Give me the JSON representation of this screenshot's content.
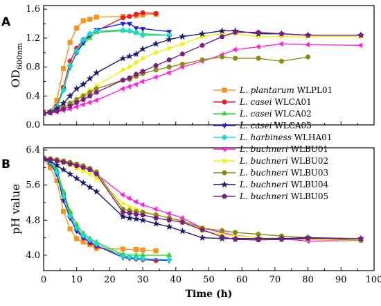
{
  "chart_data": {
    "type": "line",
    "xlabel": "Time (h)",
    "x_ticks": [
      0,
      10,
      20,
      30,
      40,
      50,
      60,
      70,
      80,
      90,
      100
    ],
    "xlim": [
      0,
      100
    ],
    "legend_placement": "right-middle",
    "panels": [
      {
        "label": "A",
        "ylabel_main": "OD",
        "ylabel_sub": "600nm",
        "ylim": [
          0,
          1.65
        ],
        "y_ticks": [
          "0.0",
          "0.4",
          "0.8",
          "1.2",
          "1.6"
        ],
        "y_tick_values": [
          0,
          0.4,
          0.8,
          1.2,
          1.6
        ],
        "series": [
          {
            "name": "WLPL01",
            "species": "L. plantarum",
            "strain": "WLPL01",
            "color": "#f7941d",
            "marker": "square",
            "x": [
              0,
              2,
              4,
              6,
              8,
              10,
              12,
              14,
              16,
              24,
              28,
              30,
              34
            ],
            "y": [
              0.16,
              0.18,
              0.34,
              0.78,
              1.14,
              1.34,
              1.44,
              1.46,
              1.49,
              1.5,
              1.51,
              1.52,
              1.53
            ]
          },
          {
            "name": "WLCA01",
            "species": "L. casei",
            "strain": "WLCA01",
            "color": "#ed1c24",
            "marker": "circle",
            "x": [
              0,
              2,
              4,
              6,
              8,
              10,
              12,
              14,
              16,
              24,
              26,
              28,
              30,
              34
            ],
            "y": [
              0.16,
              0.18,
              0.26,
              0.52,
              0.88,
              1.06,
              1.18,
              1.25,
              1.3,
              1.48,
              1.5,
              1.53,
              1.55,
              1.54
            ]
          },
          {
            "name": "WLCA02",
            "species": "L. casei",
            "strain": "WLCA02",
            "color": "#22dd22",
            "marker": "triangle-up",
            "x": [
              0,
              2,
              4,
              6,
              8,
              10,
              12,
              14,
              16,
              24,
              28,
              30,
              38
            ],
            "y": [
              0.16,
              0.18,
              0.25,
              0.5,
              0.82,
              1.0,
              1.12,
              1.2,
              1.28,
              1.3,
              1.27,
              1.26,
              1.24
            ]
          },
          {
            "name": "WLCA03",
            "species": "L. casei",
            "strain": "WLCA03",
            "color": "#1f1fe0",
            "marker": "triangle-down",
            "x": [
              0,
              2,
              4,
              6,
              8,
              10,
              12,
              14,
              16,
              24,
              26,
              28,
              30,
              38
            ],
            "y": [
              0.16,
              0.18,
              0.24,
              0.48,
              0.8,
              1.0,
              1.14,
              1.24,
              1.32,
              1.4,
              1.4,
              1.34,
              1.33,
              1.29
            ]
          },
          {
            "name": "WLHA01",
            "species": "L. harbiness",
            "strain": "WLHA01",
            "color": "#1fd6d0",
            "marker": "diamond",
            "x": [
              0,
              2,
              4,
              6,
              8,
              10,
              12,
              14,
              16,
              24,
              26,
              28,
              30,
              38
            ],
            "y": [
              0.16,
              0.18,
              0.24,
              0.48,
              0.82,
              1.02,
              1.18,
              1.26,
              1.3,
              1.31,
              1.3,
              1.28,
              1.24,
              1.24
            ]
          },
          {
            "name": "WLBU01",
            "species": "L. buchneri",
            "strain": "WLBU01",
            "color": "#ff22dd",
            "marker": "triangle-left",
            "x": [
              0,
              2,
              4,
              6,
              8,
              10,
              12,
              14,
              16,
              24,
              26,
              28,
              30,
              34,
              38,
              42,
              48,
              54,
              58,
              65,
              72,
              80,
              96
            ],
            "y": [
              0.16,
              0.16,
              0.18,
              0.2,
              0.22,
              0.25,
              0.28,
              0.31,
              0.34,
              0.5,
              0.53,
              0.56,
              0.6,
              0.66,
              0.72,
              0.8,
              0.88,
              0.97,
              1.04,
              1.08,
              1.12,
              1.11,
              1.1
            ]
          },
          {
            "name": "WLBU02",
            "species": "L. buchneri",
            "strain": "WLBU02",
            "color": "#f2f200",
            "marker": "triangle-right",
            "x": [
              0,
              2,
              4,
              6,
              8,
              10,
              12,
              14,
              16,
              24,
              26,
              28,
              30,
              34,
              38,
              42,
              48,
              54,
              58,
              65,
              72,
              80,
              96
            ],
            "y": [
              0.16,
              0.17,
              0.2,
              0.24,
              0.3,
              0.36,
              0.42,
              0.48,
              0.54,
              0.76,
              0.8,
              0.86,
              0.92,
              1.0,
              1.06,
              1.12,
              1.22,
              1.26,
              1.26,
              1.22,
              1.22,
              1.22,
              1.22
            ]
          },
          {
            "name": "WLBU03",
            "species": "L. buchneri",
            "strain": "WLBU03",
            "color": "#8c8c14",
            "marker": "circle",
            "x": [
              0,
              2,
              4,
              6,
              8,
              10,
              12,
              14,
              16,
              24,
              26,
              28,
              30,
              34,
              38,
              42,
              48,
              54,
              58,
              65,
              72,
              80
            ],
            "y": [
              0.16,
              0.17,
              0.2,
              0.24,
              0.3,
              0.35,
              0.4,
              0.45,
              0.5,
              0.62,
              0.63,
              0.67,
              0.71,
              0.76,
              0.8,
              0.84,
              0.9,
              0.94,
              0.92,
              0.92,
              0.88,
              0.94
            ]
          },
          {
            "name": "WLBU04",
            "species": "L. buchneri",
            "strain": "WLBU04",
            "color": "#1a1a6e",
            "marker": "star",
            "x": [
              0,
              2,
              4,
              6,
              8,
              10,
              12,
              14,
              16,
              24,
              26,
              28,
              30,
              34,
              38,
              42,
              48,
              54,
              58,
              65,
              72,
              80,
              96
            ],
            "y": [
              0.16,
              0.18,
              0.22,
              0.3,
              0.4,
              0.5,
              0.56,
              0.64,
              0.72,
              0.92,
              0.95,
              0.98,
              1.05,
              1.12,
              1.18,
              1.22,
              1.26,
              1.3,
              1.3,
              1.26,
              1.26,
              1.24,
              1.24
            ]
          },
          {
            "name": "WLBU05",
            "species": "L. buchneri",
            "strain": "WLBU05",
            "color": "#7b1f7d",
            "marker": "pentagon",
            "x": [
              0,
              2,
              4,
              6,
              8,
              10,
              12,
              14,
              16,
              24,
              26,
              28,
              30,
              34,
              38,
              42,
              48,
              54,
              58,
              65,
              72,
              80,
              96
            ],
            "y": [
              0.16,
              0.17,
              0.19,
              0.22,
              0.26,
              0.31,
              0.35,
              0.4,
              0.45,
              0.62,
              0.65,
              0.7,
              0.74,
              0.82,
              0.9,
              0.98,
              1.1,
              1.22,
              1.28,
              1.28,
              1.26,
              1.24,
              1.24
            ]
          }
        ]
      },
      {
        "label": "B",
        "ylabel_main": "pH value",
        "ylim": [
          3.65,
          6.45
        ],
        "y_ticks": [
          "4.0",
          "4.8",
          "5.6",
          "6.4"
        ],
        "y_tick_values": [
          4.0,
          4.8,
          5.6,
          6.4
        ],
        "series": [
          {
            "name": "WLPL01",
            "color": "#f7941d",
            "marker": "square",
            "x": [
              0,
              2,
              4,
              6,
              8,
              10,
              12,
              14,
              16,
              24,
              28,
              30,
              34
            ],
            "y": [
              6.2,
              6.0,
              5.7,
              5.0,
              4.6,
              4.38,
              4.3,
              4.24,
              4.16,
              4.14,
              4.13,
              4.12,
              4.1
            ]
          },
          {
            "name": "WLCA01",
            "color": "#ed1c24",
            "marker": "circle",
            "x": [
              0,
              2,
              4,
              6,
              8,
              10,
              12,
              14,
              16,
              24,
              26,
              28,
              30,
              34
            ],
            "y": [
              6.2,
              6.1,
              5.9,
              5.4,
              4.95,
              4.6,
              4.4,
              4.28,
              4.2,
              4.0,
              3.95,
              3.92,
              3.9,
              3.88
            ]
          },
          {
            "name": "WLCA02",
            "color": "#22dd22",
            "marker": "triangle-up",
            "x": [
              0,
              2,
              4,
              6,
              8,
              10,
              12,
              14,
              16,
              24,
              28,
              30,
              38
            ],
            "y": [
              6.22,
              6.15,
              5.95,
              5.45,
              5.0,
              4.7,
              4.5,
              4.38,
              4.3,
              4.02,
              4.0,
              4.0,
              4.0
            ]
          },
          {
            "name": "WLCA03",
            "color": "#1f1fe0",
            "marker": "triangle-down",
            "x": [
              0,
              2,
              4,
              6,
              8,
              10,
              12,
              14,
              16,
              24,
              26,
              28,
              30,
              38
            ],
            "y": [
              6.2,
              6.1,
              5.85,
              5.25,
              4.85,
              4.55,
              4.4,
              4.3,
              4.22,
              3.95,
              3.93,
              3.92,
              3.9,
              3.88
            ]
          },
          {
            "name": "WLHA01",
            "color": "#1fd6d0",
            "marker": "diamond",
            "x": [
              0,
              2,
              4,
              6,
              8,
              10,
              12,
              14,
              16,
              24,
              26,
              28,
              30,
              38
            ],
            "y": [
              6.22,
              6.12,
              5.9,
              5.35,
              4.9,
              4.62,
              4.45,
              4.35,
              4.26,
              3.98,
              3.96,
              3.94,
              3.92,
              3.9
            ]
          },
          {
            "name": "WLBU01",
            "color": "#ff22dd",
            "marker": "triangle-left",
            "x": [
              0,
              2,
              4,
              6,
              8,
              10,
              12,
              14,
              16,
              24,
              26,
              28,
              30,
              34,
              38,
              42,
              48,
              54,
              58,
              65,
              72,
              80,
              96
            ],
            "y": [
              6.22,
              6.2,
              6.18,
              6.15,
              6.1,
              6.05,
              6.0,
              5.95,
              5.85,
              5.38,
              5.3,
              5.22,
              5.15,
              5.05,
              4.95,
              4.85,
              4.62,
              4.52,
              4.45,
              4.4,
              4.38,
              4.32,
              4.34
            ]
          },
          {
            "name": "WLBU02",
            "color": "#f2f200",
            "marker": "triangle-right",
            "x": [
              0,
              2,
              4,
              6,
              8,
              10,
              12,
              14,
              16,
              24,
              26,
              28,
              30,
              34,
              38,
              42,
              48,
              54,
              58,
              65,
              72,
              80,
              96
            ],
            "y": [
              6.22,
              6.2,
              6.15,
              6.1,
              6.05,
              5.98,
              5.92,
              5.85,
              5.75,
              5.18,
              5.1,
              5.05,
              5.0,
              4.92,
              4.85,
              4.78,
              4.55,
              4.48,
              4.44,
              4.4,
              4.38,
              4.36,
              4.34
            ]
          },
          {
            "name": "WLBU03",
            "color": "#8c8c14",
            "marker": "circle",
            "x": [
              0,
              2,
              4,
              6,
              8,
              10,
              12,
              14,
              16,
              24,
              26,
              28,
              30,
              34,
              38,
              42,
              48,
              54,
              58,
              65,
              72,
              80,
              96
            ],
            "y": [
              6.22,
              6.2,
              6.18,
              6.15,
              6.12,
              6.08,
              6.04,
              5.98,
              5.9,
              5.05,
              5.02,
              5.0,
              4.98,
              4.92,
              4.85,
              4.78,
              4.62,
              4.56,
              4.52,
              4.48,
              4.44,
              4.4,
              4.34
            ]
          },
          {
            "name": "WLBU04",
            "color": "#1a1a6e",
            "marker": "star",
            "x": [
              0,
              2,
              4,
              6,
              8,
              10,
              12,
              14,
              16,
              24,
              26,
              28,
              30,
              34,
              38,
              42,
              48,
              54,
              58,
              65,
              72,
              80,
              96
            ],
            "y": [
              6.2,
              6.15,
              6.05,
              5.95,
              5.85,
              5.75,
              5.65,
              5.55,
              5.45,
              4.88,
              4.85,
              4.83,
              4.8,
              4.72,
              4.65,
              4.55,
              4.4,
              4.38,
              4.38,
              4.38,
              4.38,
              4.4,
              4.38
            ]
          },
          {
            "name": "WLBU05",
            "color": "#7b1f7d",
            "marker": "pentagon",
            "x": [
              0,
              2,
              4,
              6,
              8,
              10,
              12,
              14,
              16,
              24,
              26,
              28,
              30,
              34,
              38,
              42,
              48,
              54,
              58,
              65,
              72,
              80,
              96
            ],
            "y": [
              6.2,
              6.18,
              6.15,
              6.12,
              6.08,
              6.04,
              6.0,
              5.95,
              5.85,
              4.98,
              4.96,
              4.94,
              4.92,
              4.85,
              4.8,
              4.75,
              4.58,
              4.42,
              4.36,
              4.35,
              4.36,
              4.38,
              4.38
            ]
          }
        ]
      }
    ]
  }
}
